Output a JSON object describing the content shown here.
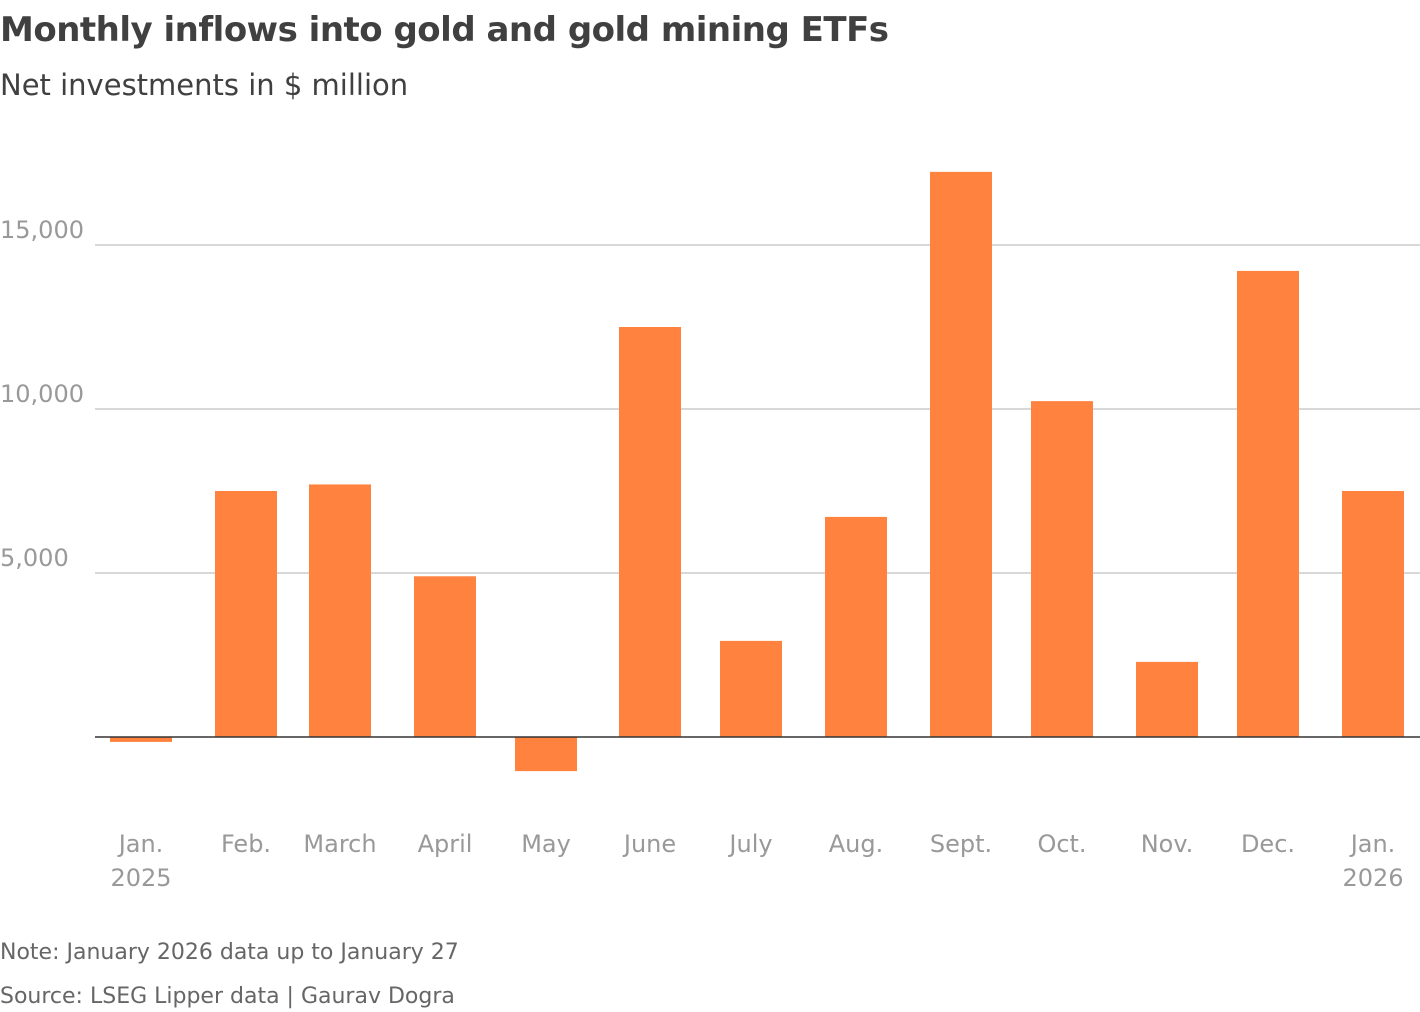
{
  "title": "Monthly inflows into gold and gold mining ETFs",
  "subtitle": "Net investments in $ million",
  "note": "Note: January 2026 data up to January 27",
  "source": "Source: LSEG Lipper data | Gaurav Dogra",
  "chart_data": {
    "type": "bar",
    "title": "Monthly inflows into gold and gold mining ETFs",
    "subtitle": "Net investments in $ million",
    "categories": [
      [
        "Jan.",
        "2025"
      ],
      [
        "Feb."
      ],
      [
        "March"
      ],
      [
        "April"
      ],
      [
        "May"
      ],
      [
        "June"
      ],
      [
        "July"
      ],
      [
        "Aug."
      ],
      [
        "Sept."
      ],
      [
        "Oct."
      ],
      [
        "Nov."
      ],
      [
        "Dec."
      ],
      [
        "Jan.",
        "2026"
      ]
    ],
    "values": [
      -150,
      7500,
      7700,
      4900,
      -1040,
      12500,
      2930,
      6710,
      17230,
      10240,
      2290,
      14210,
      7500
    ],
    "yticks": [
      5000,
      10000,
      15000
    ],
    "ytick_labels": [
      "5,000",
      "10,000",
      "15,000"
    ],
    "ylim": [
      -2000,
      18500
    ],
    "grid": true,
    "colors": {
      "bar": "#FF823F",
      "grid": "#cccccc",
      "zero_line": "#333333",
      "tick_text": "#999999"
    }
  }
}
